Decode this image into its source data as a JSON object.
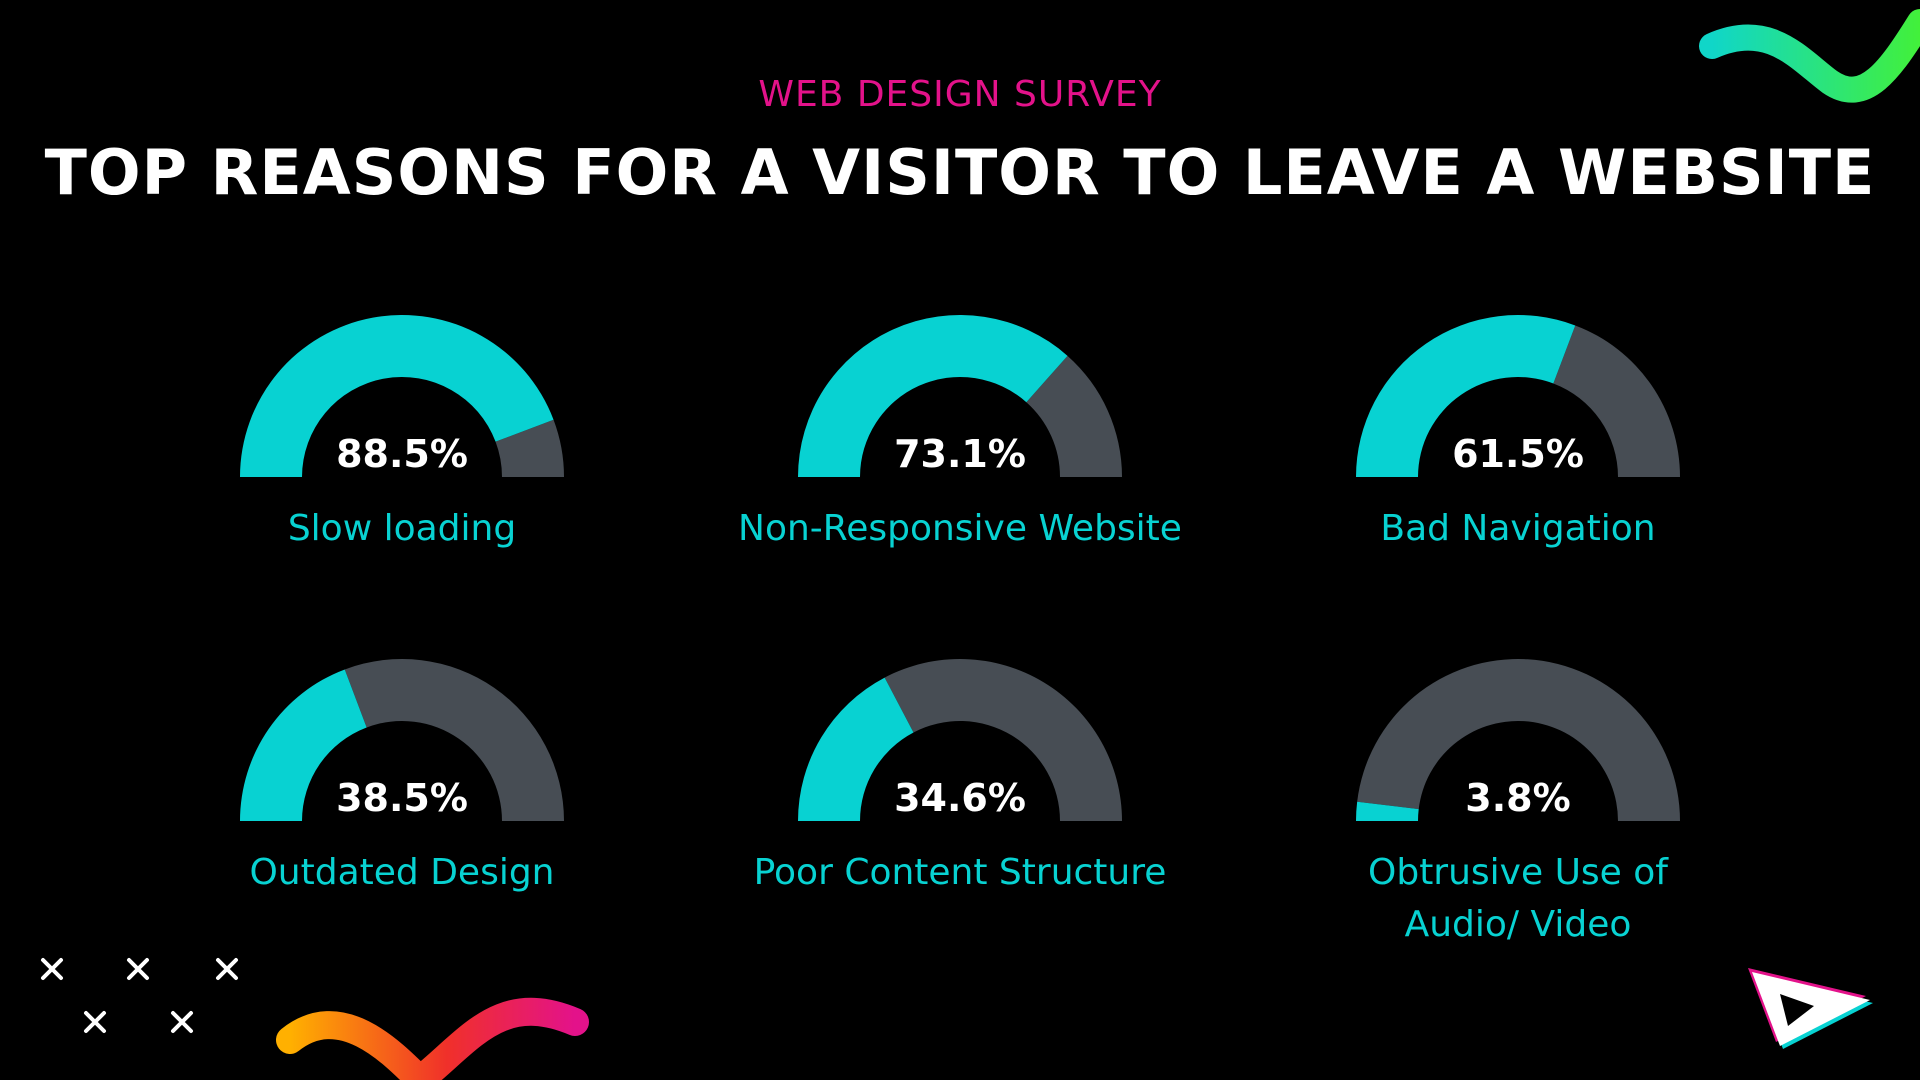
{
  "header": {
    "subtitle": "WEB DESIGN SURVEY",
    "title": "TOP REASONS FOR A VISITOR TO LEAVE A WEBSITE"
  },
  "colors": {
    "accent": "#08D2D2",
    "track": "#474D54",
    "subtitle": "#E3128A",
    "background": "#000000"
  },
  "chart_data": {
    "type": "gauge",
    "title": "TOP REASONS FOR A VISITOR TO LEAVE A WEBSITE",
    "unit": "%",
    "range": [
      0,
      100
    ],
    "items": [
      {
        "label": "Slow loading",
        "value": 88.5,
        "display": "88.5%"
      },
      {
        "label": "Non-Responsive Website",
        "value": 73.1,
        "display": "73.1%"
      },
      {
        "label": "Bad Navigation",
        "value": 61.5,
        "display": "61.5%"
      },
      {
        "label": "Outdated Design",
        "value": 38.5,
        "display": "38.5%"
      },
      {
        "label": "Poor Content Structure",
        "value": 34.6,
        "display": "34.6%"
      },
      {
        "label": "Obtrusive Use of Audio/ Video",
        "value": 3.8,
        "display": "3.8%"
      }
    ]
  },
  "decorations": {
    "top_right": "green-squiggle",
    "bottom_left_marks": "x-marks",
    "bottom_left_wave": "orange-pink-squiggle",
    "bottom_right_logo": "play-logo-icon"
  }
}
